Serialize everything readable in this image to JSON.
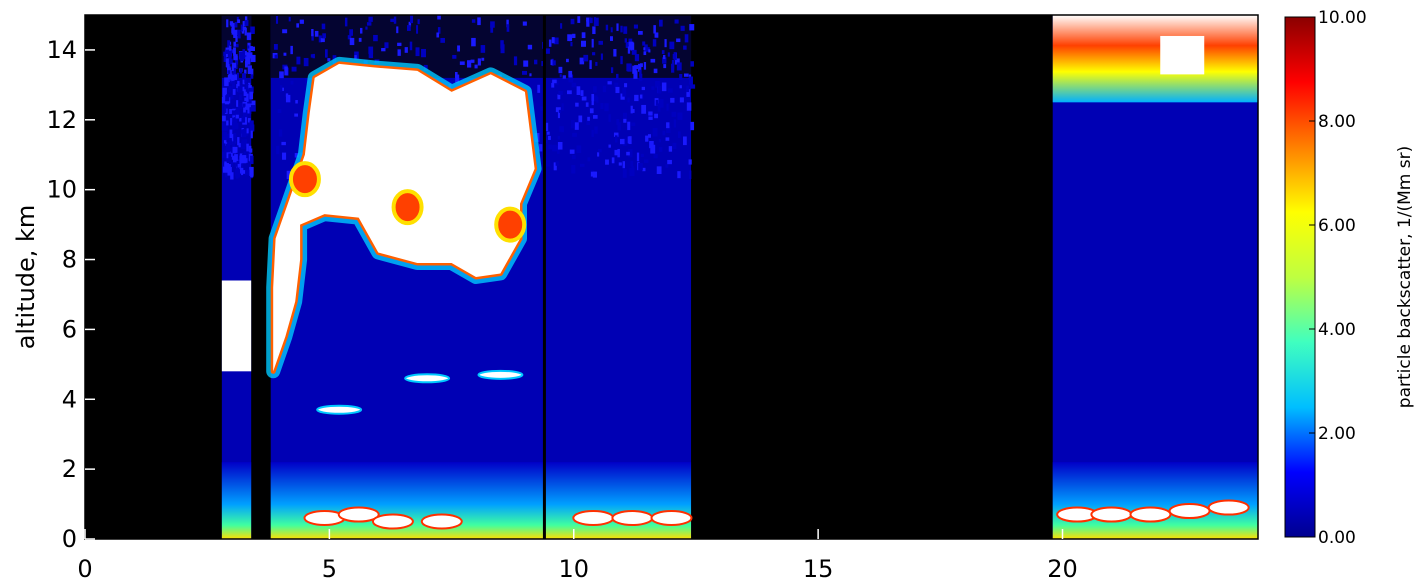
{
  "chart_data": {
    "type": "heatmap",
    "title": "",
    "xlabel": "",
    "ylabel": "altitude, km",
    "xlim": [
      0,
      24
    ],
    "ylim": [
      0,
      15
    ],
    "x_ticks": [
      "0",
      "5",
      "10",
      "15",
      "20"
    ],
    "y_ticks": [
      "0",
      "2",
      "4",
      "6",
      "8",
      "10",
      "12",
      "14"
    ],
    "colorbar": {
      "label": "particle backscatter, 1/(Mm sr)",
      "range": [
        0,
        10
      ],
      "ticks": [
        "0.00",
        "2.00",
        "4.00",
        "6.00",
        "8.00",
        "10.00"
      ],
      "colors": [
        "#00008f",
        "#0000ff",
        "#00bfff",
        "#40ffbf",
        "#bfff40",
        "#ffff00",
        "#ff8000",
        "#ff0000",
        "#8b0000"
      ],
      "over_color": "#ffffff",
      "missing_color": "#000000"
    },
    "data_gaps_hours": [
      [
        0,
        2.8
      ],
      [
        3.4,
        3.8
      ],
      [
        12.4,
        19.8
      ]
    ],
    "measurement_segments_hours": [
      [
        2.8,
        3.4
      ],
      [
        3.8,
        9.4
      ],
      [
        9.4,
        12.4
      ],
      [
        19.8,
        24
      ]
    ],
    "features": [
      {
        "name": "thick cloud (saturated)",
        "hours": [
          4.4,
          8.9
        ],
        "altitude_km": [
          7.5,
          13.0
        ],
        "value": "over 10"
      },
      {
        "name": "boundary layer aerosol",
        "hours": [
          2.8,
          24
        ],
        "altitude_km": [
          0,
          2.0
        ],
        "value": 4
      },
      {
        "name": "cirrus layer",
        "hours": [
          19.8,
          24
        ],
        "altitude_km": [
          12.5,
          15.0
        ],
        "value": 8
      }
    ]
  }
}
